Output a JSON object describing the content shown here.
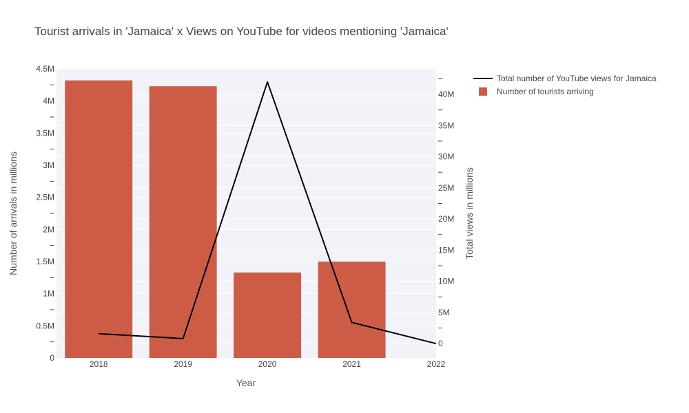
{
  "chart_data": {
    "type": "bar+line",
    "title": "Tourist arrivals in 'Jamaica' x Views on YouTube for videos mentioning 'Jamaica'",
    "xlabel": "Year",
    "ylabel_left": "Number of arrivals in millions",
    "ylabel_right": "Total views in millions",
    "categories": [
      "2018",
      "2019",
      "2020",
      "2021",
      "2022"
    ],
    "y_left_range": [
      0,
      4500000
    ],
    "y_right_range": [
      -2300000,
      44100000
    ],
    "y_left_ticks": [
      {
        "value": 0,
        "label": "0"
      },
      {
        "value": 500000,
        "label": "0.5M"
      },
      {
        "value": 1000000,
        "label": "1M"
      },
      {
        "value": 1500000,
        "label": "1.5M"
      },
      {
        "value": 2000000,
        "label": "2M"
      },
      {
        "value": 2500000,
        "label": "2.5M"
      },
      {
        "value": 3000000,
        "label": "3M"
      },
      {
        "value": 3500000,
        "label": "3.5M"
      },
      {
        "value": 4000000,
        "label": "4M"
      },
      {
        "value": 4500000,
        "label": "4.5M"
      }
    ],
    "y_right_ticks": [
      {
        "value": 0,
        "label": "0"
      },
      {
        "value": 5000000,
        "label": "5M"
      },
      {
        "value": 10000000,
        "label": "10M"
      },
      {
        "value": 15000000,
        "label": "15M"
      },
      {
        "value": 20000000,
        "label": "20M"
      },
      {
        "value": 25000000,
        "label": "25M"
      },
      {
        "value": 30000000,
        "label": "30M"
      },
      {
        "value": 35000000,
        "label": "35M"
      },
      {
        "value": 40000000,
        "label": "40M"
      }
    ],
    "series": [
      {
        "name": "Number of tourists arriving",
        "kind": "bar",
        "axis": "left",
        "color": "#cd5c47",
        "values": [
          4320000,
          4230000,
          1330000,
          1500000,
          null
        ]
      },
      {
        "name": "Total number of YouTube views for Jamaica",
        "kind": "line",
        "axis": "right",
        "color": "#000000",
        "values": [
          1600000,
          800000,
          42000000,
          3400000,
          0
        ]
      }
    ],
    "legend_position": "top-right",
    "plot_background": "#f1f3f8",
    "grid": true
  }
}
